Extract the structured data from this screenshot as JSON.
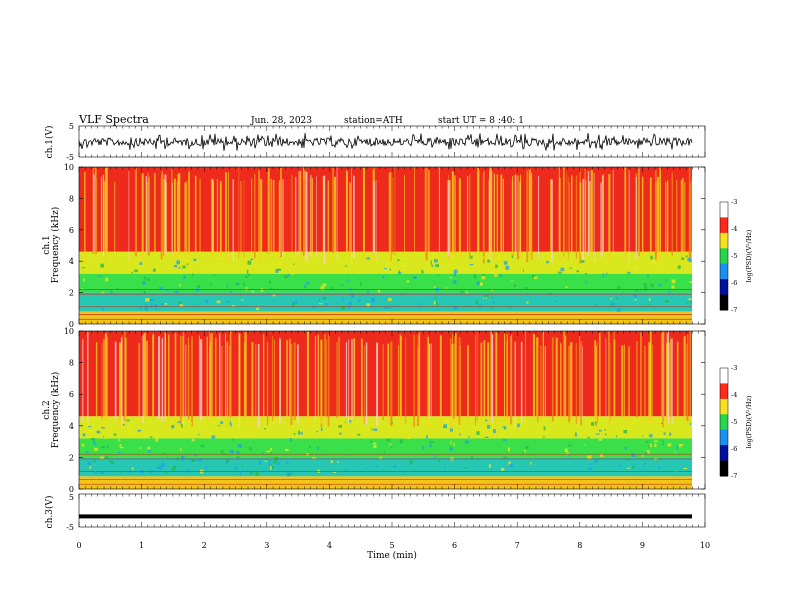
{
  "header": {
    "title": "VLF Spectra",
    "date": "Jun. 28, 2023",
    "station": "station=ATH",
    "start": "start UT =  8 :40: 1"
  },
  "chart_data": [
    {
      "type": "line",
      "name": "ch1-waveform",
      "ylabel": "ch.1(V)",
      "yticks": [
        "5",
        "-5"
      ],
      "ylim": [
        -5,
        5
      ],
      "xlim": [
        0,
        10
      ],
      "grid": false
    },
    {
      "type": "heatmap",
      "name": "ch1-spectrogram",
      "channel_label": "ch.1",
      "ylabel": "Frequency (kHz)",
      "ylim": [
        0,
        10
      ],
      "yticks": [
        "10",
        "8",
        "6",
        "4",
        "2",
        "0"
      ],
      "xlim": [
        0,
        9.8
      ],
      "colorbar": {
        "label": "log(PSD)(V²/Hz)",
        "ticks": [
          "-3",
          "-4",
          "-5",
          "-6",
          "-7"
        ],
        "range": [
          -7,
          -3
        ]
      }
    },
    {
      "type": "heatmap",
      "name": "ch2-spectrogram",
      "channel_label": "ch.2",
      "ylabel": "Frequency (kHz)",
      "ylim": [
        0,
        10
      ],
      "yticks": [
        "10",
        "8",
        "6",
        "4",
        "2",
        "0"
      ],
      "xlim": [
        0,
        9.8
      ],
      "colorbar": {
        "label": "log(PSD)(V²/Hz)",
        "ticks": [
          "-3",
          "-4",
          "-5",
          "-6",
          "-7"
        ],
        "range": [
          -7,
          -3
        ]
      }
    },
    {
      "type": "line",
      "name": "ch3-waveform",
      "ylabel": "ch.3(V)",
      "yticks": [
        "5",
        "-5"
      ],
      "ylim": [
        -5,
        5
      ],
      "xlim": [
        0,
        10
      ],
      "xlabel": "Time (min)",
      "xticks": [
        "0",
        "1",
        "2",
        "3",
        "4",
        "5",
        "6",
        "7",
        "8",
        "9",
        "10"
      ],
      "level": -1.8
    }
  ]
}
